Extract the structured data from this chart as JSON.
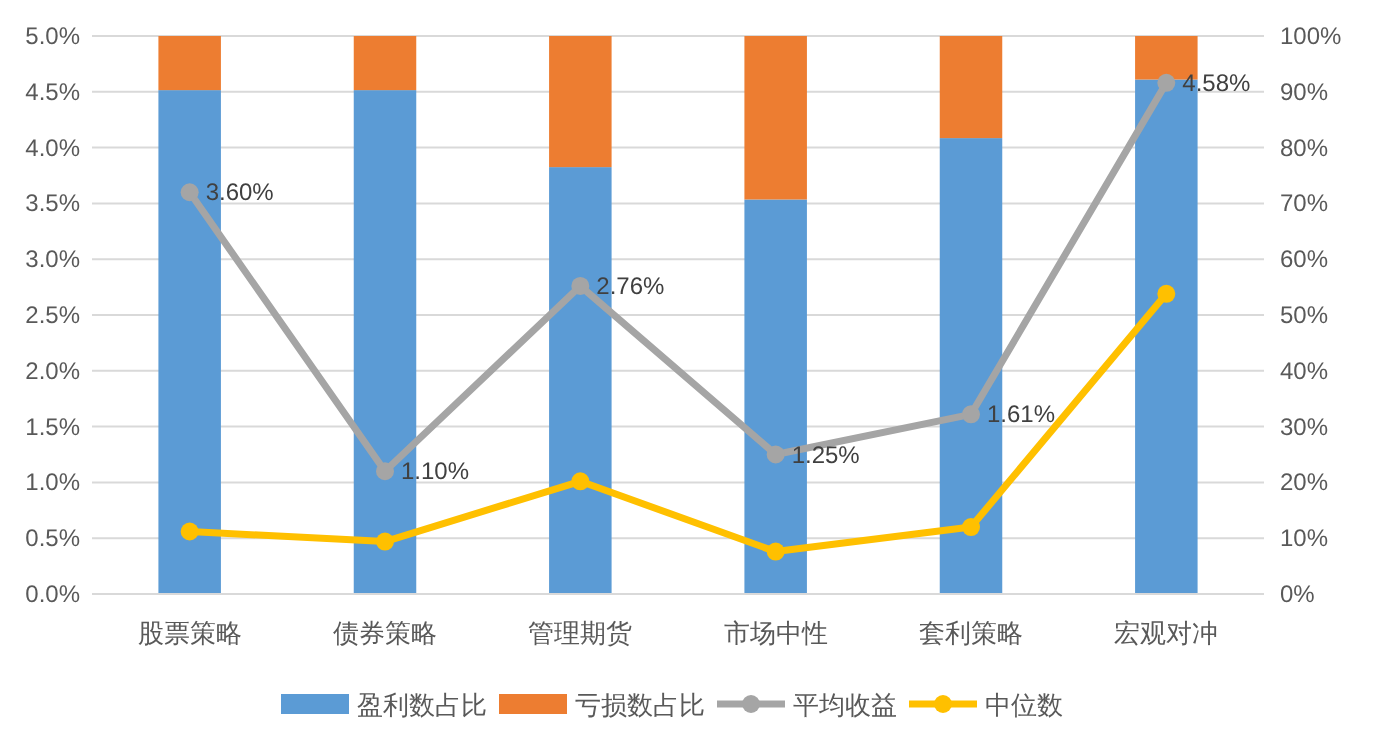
{
  "chart_data": {
    "type": "bar",
    "stacked": true,
    "categories": [
      "股票策略",
      "债券策略",
      "管理期货",
      "市场中性",
      "套利策略",
      "宏观对冲"
    ],
    "series": [
      {
        "name": "盈利数占比",
        "color": "#5b9bd5",
        "axis": "y2",
        "values": [
          90.3,
          90.3,
          76.5,
          70.7,
          81.7,
          92.2
        ]
      },
      {
        "name": "亏损数占比",
        "color": "#ed7d31",
        "axis": "y2",
        "values": [
          9.7,
          9.7,
          23.5,
          29.3,
          18.3,
          7.8
        ]
      },
      {
        "name": "平均收益",
        "type": "line",
        "color": "#a5a5a5",
        "values": [
          3.6,
          1.1,
          2.76,
          1.25,
          1.61,
          4.58
        ],
        "value_labels": [
          "3.60%",
          "1.10%",
          "2.76%",
          "1.25%",
          "1.61%",
          "4.58%"
        ]
      },
      {
        "name": "中位数",
        "type": "line",
        "color": "#ffc000",
        "values": [
          0.56,
          0.47,
          1.01,
          0.38,
          0.6,
          2.69
        ]
      }
    ],
    "marker": "circle",
    "grid": "y",
    "legend": "bottom",
    "ylim": [
      0,
      5
    ],
    "yticks": [
      {
        "value": 0,
        "label": "0.0%"
      },
      {
        "value": 0.5,
        "label": "0.5%"
      },
      {
        "value": 1,
        "label": "1.0%"
      },
      {
        "value": 1.5,
        "label": "1.5%"
      },
      {
        "value": 2,
        "label": "2.0%"
      },
      {
        "value": 2.5,
        "label": "2.5%"
      },
      {
        "value": 3,
        "label": "3.0%"
      },
      {
        "value": 3.5,
        "label": "3.5%"
      },
      {
        "value": 4,
        "label": "4.0%"
      },
      {
        "value": 4.5,
        "label": "4.5%"
      },
      {
        "value": 5,
        "label": "5.0%"
      }
    ],
    "y2lim": [
      0,
      100
    ],
    "y2ticks": [
      {
        "value": 0,
        "label": "0%"
      },
      {
        "value": 10,
        "label": "10%"
      },
      {
        "value": 20,
        "label": "20%"
      },
      {
        "value": 30,
        "label": "30%"
      },
      {
        "value": 40,
        "label": "40%"
      },
      {
        "value": 50,
        "label": "50%"
      },
      {
        "value": 60,
        "label": "60%"
      },
      {
        "value": 70,
        "label": "70%"
      },
      {
        "value": 80,
        "label": "80%"
      },
      {
        "value": 90,
        "label": "90%"
      },
      {
        "value": 100,
        "label": "100%"
      }
    ]
  }
}
